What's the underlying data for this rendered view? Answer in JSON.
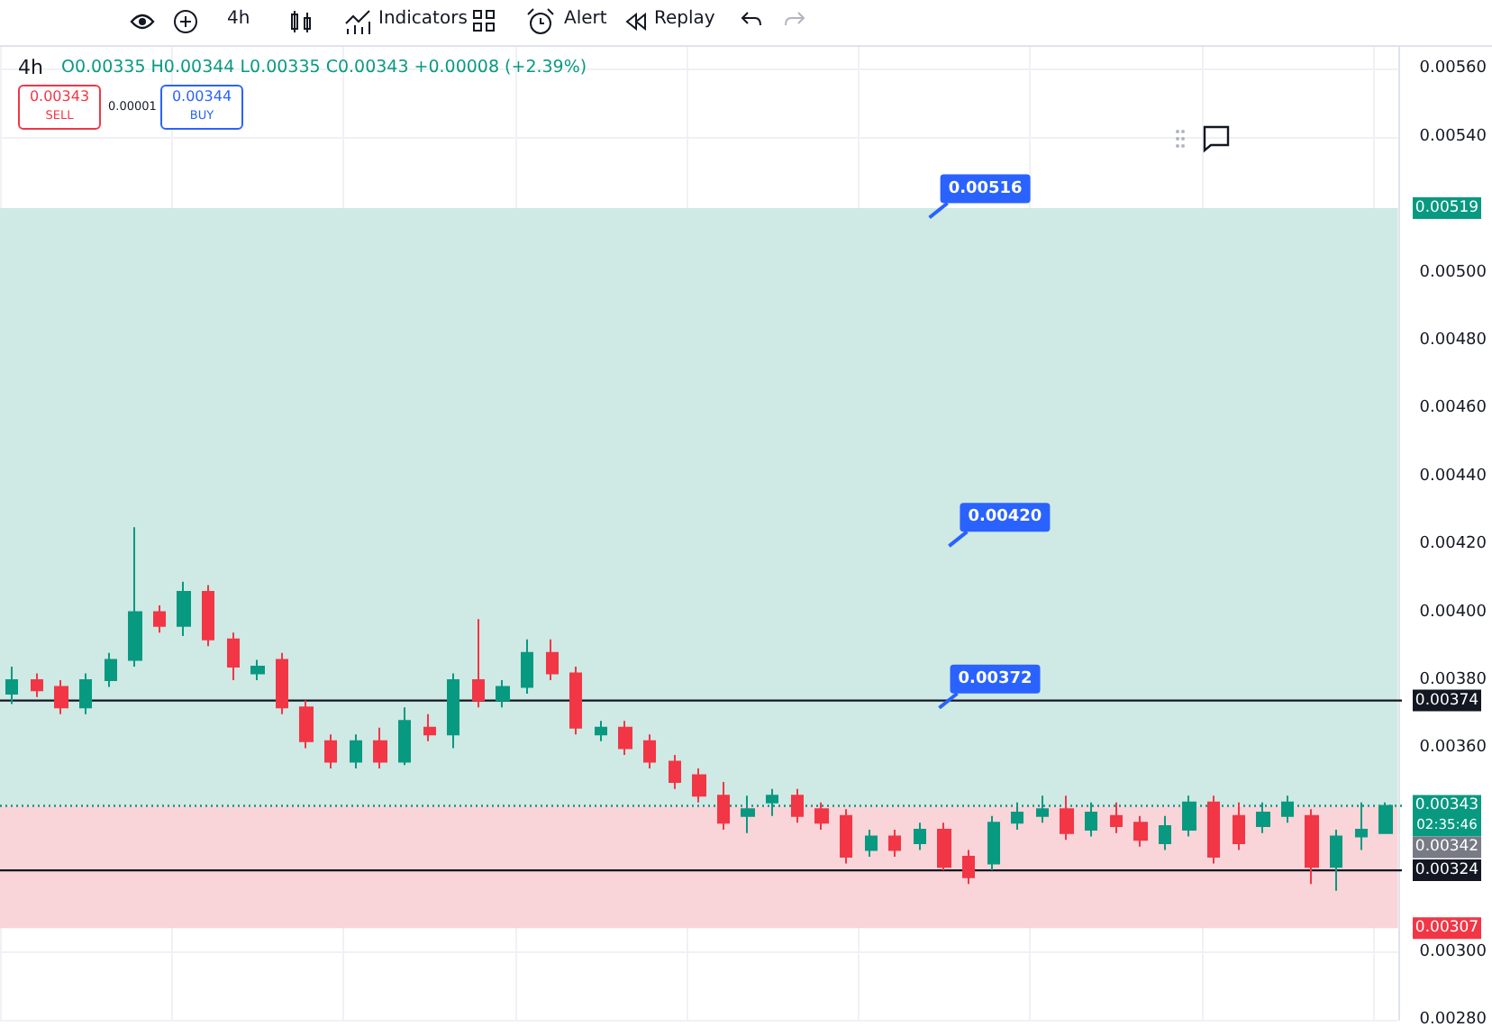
{
  "chart_data": {
    "type": "candlestick",
    "title": "4h",
    "subtitle": "O0.00335 H0.00344 L0.00335 C0.00343 +0.00008 (+2.39%)",
    "categories": [
      null,
      null,
      null,
      null,
      null,
      null,
      null,
      null,
      null,
      null,
      null,
      null,
      null,
      null,
      null,
      null,
      null,
      null,
      null,
      null,
      null,
      null,
      null,
      null,
      null,
      null,
      null,
      null,
      null,
      null,
      null,
      null,
      null,
      null,
      null,
      null,
      null,
      null,
      null,
      null,
      null,
      null,
      null,
      null,
      null,
      null,
      null,
      null,
      null,
      null,
      null,
      null,
      null,
      null,
      null,
      null,
      null
    ],
    "ohlc": [
      [
        0.00376,
        0.00384,
        0.00373,
        0.0038
      ],
      [
        0.0038,
        0.00382,
        0.00375,
        0.00377
      ],
      [
        0.00378,
        0.0038,
        0.0037,
        0.00372
      ],
      [
        0.00372,
        0.00382,
        0.0037,
        0.0038
      ],
      [
        0.0038,
        0.00388,
        0.00378,
        0.00386
      ],
      [
        0.00386,
        0.00425,
        0.00384,
        0.004
      ],
      [
        0.004,
        0.00402,
        0.00394,
        0.00396
      ],
      [
        0.00396,
        0.00409,
        0.00393,
        0.00406
      ],
      [
        0.00406,
        0.00408,
        0.0039,
        0.00392
      ],
      [
        0.00392,
        0.00394,
        0.0038,
        0.00384
      ],
      [
        0.00382,
        0.00386,
        0.0038,
        0.00384
      ],
      [
        0.00386,
        0.00388,
        0.0037,
        0.00372
      ],
      [
        0.00372,
        0.00374,
        0.0036,
        0.00362
      ],
      [
        0.00362,
        0.00364,
        0.00354,
        0.00356
      ],
      [
        0.00356,
        0.00364,
        0.00354,
        0.00362
      ],
      [
        0.00362,
        0.00366,
        0.00354,
        0.00356
      ],
      [
        0.00356,
        0.00372,
        0.00355,
        0.00368
      ],
      [
        0.00366,
        0.0037,
        0.00362,
        0.00364
      ],
      [
        0.00364,
        0.00382,
        0.0036,
        0.0038
      ],
      [
        0.0038,
        0.00398,
        0.00372,
        0.00374
      ],
      [
        0.00374,
        0.0038,
        0.00372,
        0.00378
      ],
      [
        0.00378,
        0.00392,
        0.00376,
        0.00388
      ],
      [
        0.00388,
        0.00392,
        0.0038,
        0.00382
      ],
      [
        0.00382,
        0.00384,
        0.00364,
        0.00366
      ],
      [
        0.00364,
        0.00368,
        0.00362,
        0.00366
      ],
      [
        0.00366,
        0.00368,
        0.00358,
        0.0036
      ],
      [
        0.00362,
        0.00364,
        0.00354,
        0.00356
      ],
      [
        0.00356,
        0.00358,
        0.00348,
        0.0035
      ],
      [
        0.00352,
        0.00354,
        0.00344,
        0.00346
      ],
      [
        0.00346,
        0.0035,
        0.00336,
        0.00338
      ],
      [
        0.0034,
        0.00346,
        0.00335,
        0.00342
      ],
      [
        0.00344,
        0.00348,
        0.0034,
        0.00346
      ],
      [
        0.00346,
        0.00348,
        0.00338,
        0.0034
      ],
      [
        0.00342,
        0.00344,
        0.00336,
        0.00338
      ],
      [
        0.0034,
        0.00342,
        0.00326,
        0.00328
      ],
      [
        0.0033,
        0.00336,
        0.00328,
        0.00334
      ],
      [
        0.00334,
        0.00336,
        0.00328,
        0.0033
      ],
      [
        0.00332,
        0.00338,
        0.0033,
        0.00336
      ],
      [
        0.00336,
        0.00338,
        0.00324,
        0.00325
      ],
      [
        0.00328,
        0.0033,
        0.0032,
        0.00322
      ],
      [
        0.00326,
        0.0034,
        0.00324,
        0.00338
      ],
      [
        0.00338,
        0.00344,
        0.00336,
        0.00341
      ],
      [
        0.0034,
        0.00346,
        0.00338,
        0.00342
      ],
      [
        0.00342,
        0.00346,
        0.00333,
        0.00335
      ],
      [
        0.00336,
        0.00344,
        0.00334,
        0.00341
      ],
      [
        0.0034,
        0.00344,
        0.00335,
        0.00337
      ],
      [
        0.00338,
        0.0034,
        0.00331,
        0.00333
      ],
      [
        0.00332,
        0.0034,
        0.0033,
        0.00337
      ],
      [
        0.00336,
        0.00346,
        0.00334,
        0.00344
      ],
      [
        0.00344,
        0.00346,
        0.00326,
        0.00328
      ],
      [
        0.0034,
        0.00344,
        0.0033,
        0.00332
      ],
      [
        0.00337,
        0.00344,
        0.00335,
        0.00341
      ],
      [
        0.0034,
        0.00346,
        0.00338,
        0.00344
      ],
      [
        0.0034,
        0.00342,
        0.0032,
        0.00325
      ],
      [
        0.00325,
        0.00336,
        0.00318,
        0.00334
      ],
      [
        0.00334,
        0.00344,
        0.0033,
        0.00336
      ],
      [
        0.00335,
        0.00344,
        0.00335,
        0.00343
      ]
    ],
    "ylim": [
      0.0028,
      0.00567
    ],
    "yticks": [
      {
        "value": 0.0028,
        "label": "0.00280"
      },
      {
        "value": 0.003,
        "label": "0.00300"
      },
      {
        "value": 0.0036,
        "label": "0.00360"
      },
      {
        "value": 0.0038,
        "label": "0.00380"
      },
      {
        "value": 0.004,
        "label": "0.00400"
      },
      {
        "value": 0.0042,
        "label": "0.00420"
      },
      {
        "value": 0.0044,
        "label": "0.00440"
      },
      {
        "value": 0.0046,
        "label": "0.00460"
      },
      {
        "value": 0.0048,
        "label": "0.00480"
      },
      {
        "value": 0.005,
        "label": "0.00500"
      },
      {
        "value": 0.0054,
        "label": "0.00540"
      },
      {
        "value": 0.0056,
        "label": "0.00560"
      }
    ],
    "tick_labels": "y",
    "grid": true,
    "ref_lines": [
      {
        "axis": "y",
        "value": 0.00374,
        "label": "0.00374",
        "color": "#131722"
      },
      {
        "axis": "y",
        "value": 0.00324,
        "label": "0.00324",
        "color": "#131722"
      },
      {
        "axis": "y",
        "value": 0.00343,
        "label": "0.00343",
        "color": "#089981",
        "line_style": "dotted"
      }
    ],
    "bands": [
      {
        "axis": "y",
        "from": 0.00343,
        "to": 0.00519,
        "label": "0.00519",
        "color": "#cfe9e5"
      },
      {
        "axis": "y",
        "from": 0.00307,
        "to": 0.00343,
        "label": "0.00307",
        "color": "#f9d4d8"
      }
    ],
    "annotations": [
      "4h",
      "Indicators",
      "Alert",
      "Replay",
      "0.00343",
      "SELL",
      "0.00001",
      "0.00344",
      "BUY",
      "02:35:46",
      "0.00342",
      "0.00516",
      "0.00420",
      "0.00372"
    ]
  }
}
